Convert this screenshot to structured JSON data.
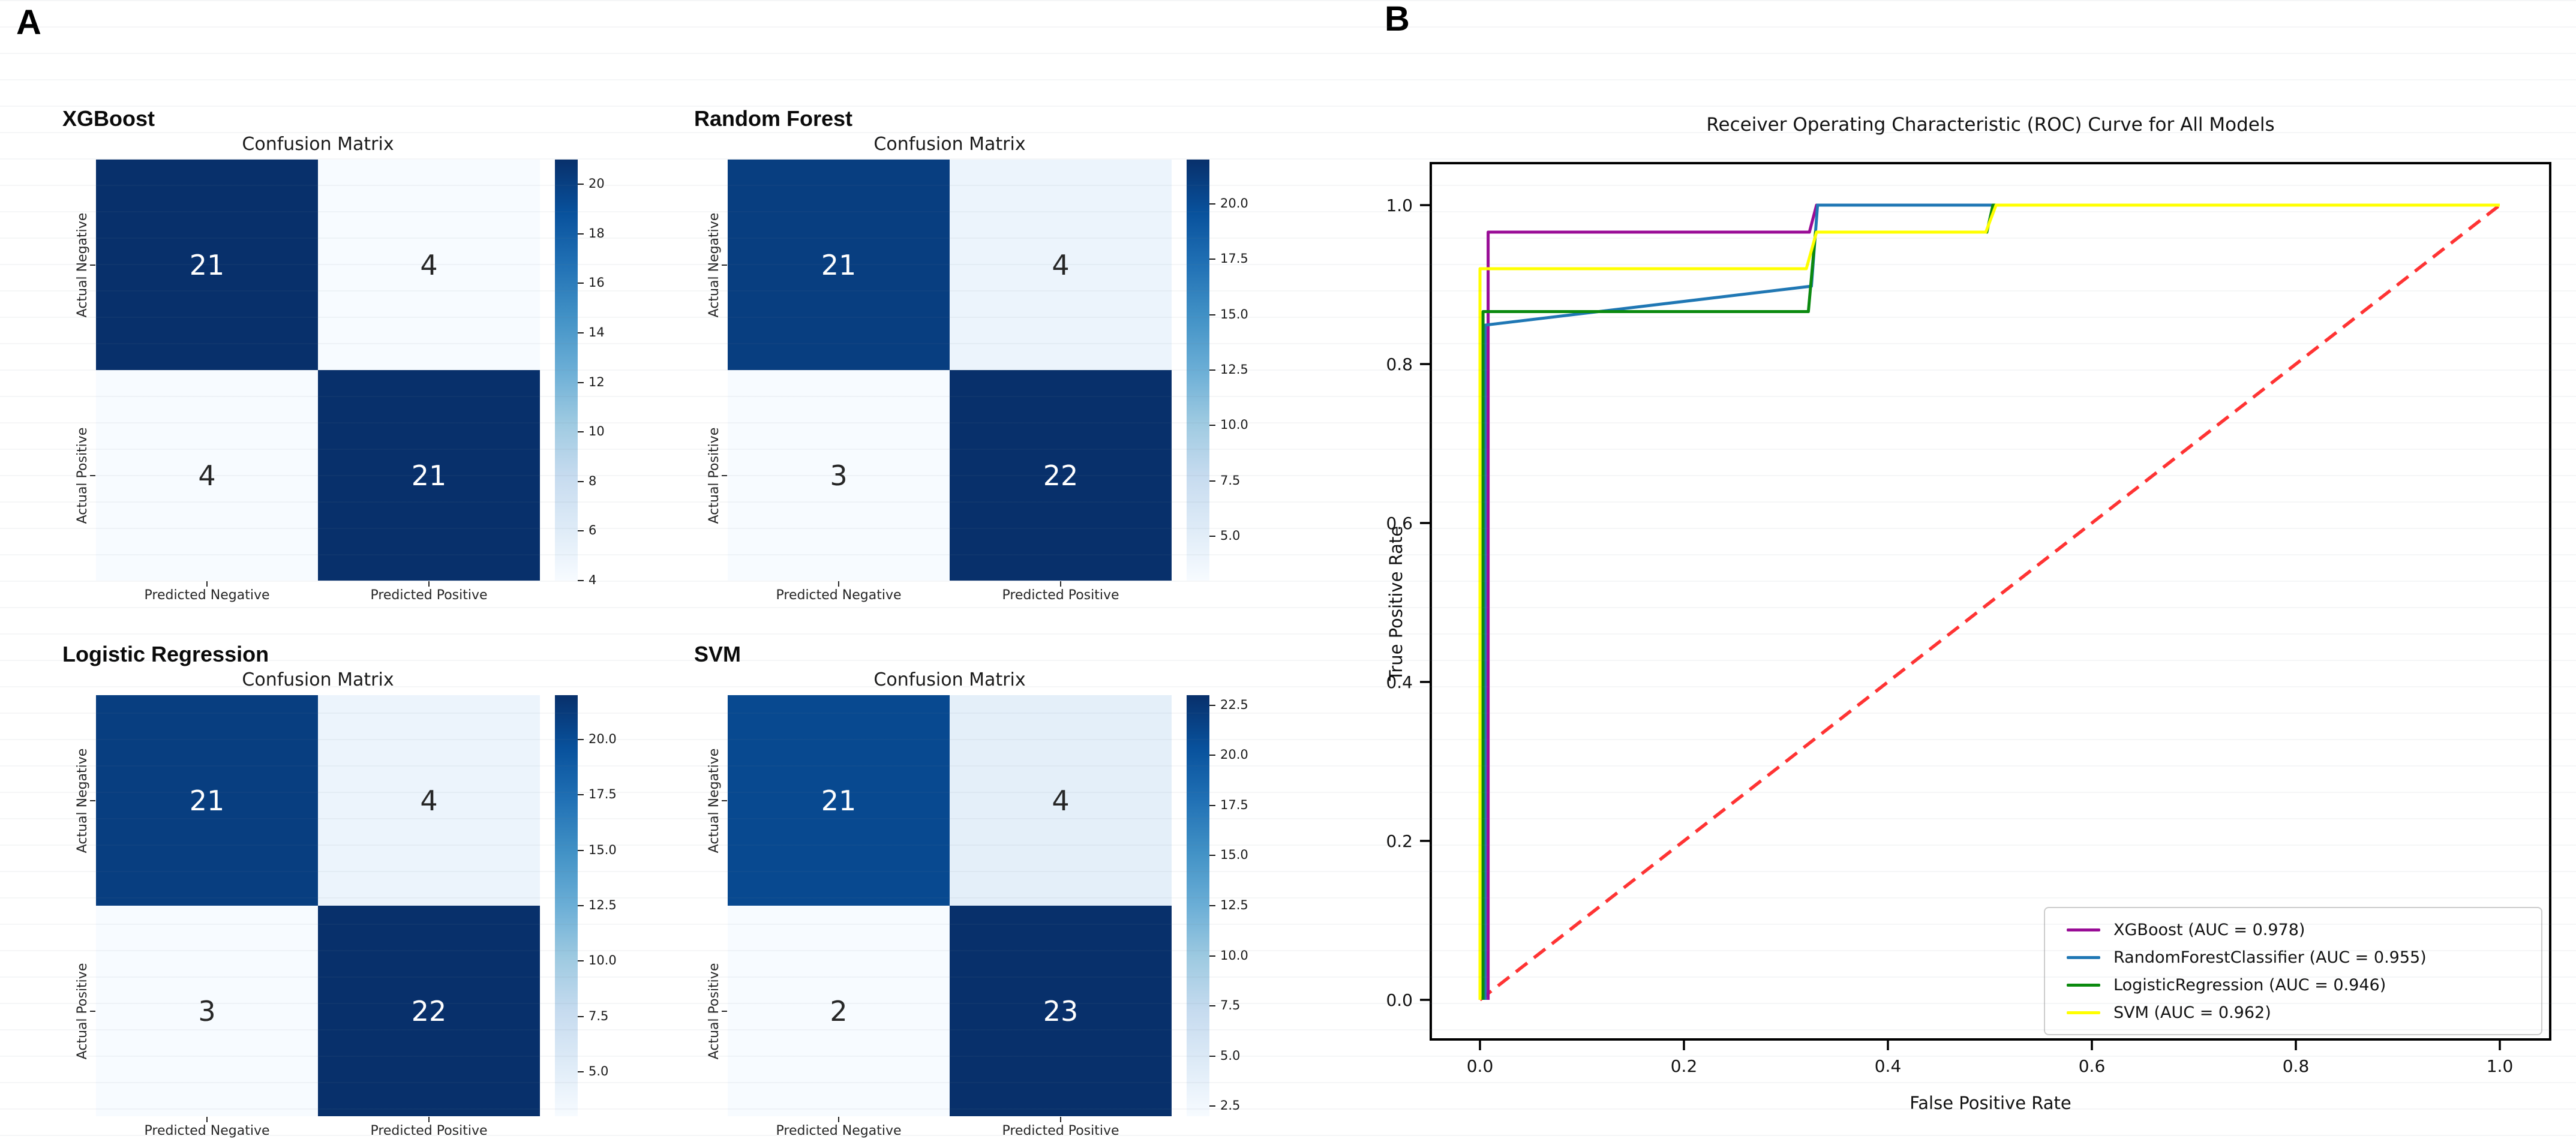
{
  "panels": {
    "a_label": "A",
    "b_label": "B"
  },
  "chart_data": [
    {
      "type": "heatmap",
      "model": "XGBoost",
      "title": "Confusion Matrix",
      "rows": [
        "Actual Negative",
        "Actual Positive"
      ],
      "cols": [
        "Predicted Negative",
        "Predicted Positive"
      ],
      "values": [
        [
          21,
          4
        ],
        [
          4,
          21
        ]
      ],
      "vmin": 4,
      "vmax": 21,
      "colormap": "Blues",
      "colorbar_ticks": [
        4,
        6,
        8,
        10,
        12,
        14,
        16,
        18,
        20
      ],
      "tick_decimals": 0
    },
    {
      "type": "heatmap",
      "model": "Random Forest",
      "title": "Confusion Matrix",
      "rows": [
        "Actual Negative",
        "Actual Positive"
      ],
      "cols": [
        "Predicted Negative",
        "Predicted Positive"
      ],
      "values": [
        [
          21,
          4
        ],
        [
          3,
          22
        ]
      ],
      "vmin": 3,
      "vmax": 22,
      "colormap": "Blues",
      "colorbar_ticks": [
        5,
        7.5,
        10,
        12.5,
        15,
        17.5,
        20
      ],
      "tick_decimals": 1
    },
    {
      "type": "heatmap",
      "model": "Logistic Regression",
      "title": "Confusion Matrix",
      "rows": [
        "Actual Negative",
        "Actual Positive"
      ],
      "cols": [
        "Predicted Negative",
        "Predicted Positive"
      ],
      "values": [
        [
          21,
          4
        ],
        [
          3,
          22
        ]
      ],
      "vmin": 3,
      "vmax": 22,
      "colormap": "Blues",
      "colorbar_ticks": [
        5,
        7.5,
        10,
        12.5,
        15,
        17.5,
        20
      ],
      "tick_decimals": 1
    },
    {
      "type": "heatmap",
      "model": "SVM",
      "title": "Confusion Matrix",
      "rows": [
        "Actual Negative",
        "Actual Positive"
      ],
      "cols": [
        "Predicted Negative",
        "Predicted Positive"
      ],
      "values": [
        [
          21,
          4
        ],
        [
          2,
          23
        ]
      ],
      "vmin": 2,
      "vmax": 23,
      "colormap": "Blues",
      "colorbar_ticks": [
        2.5,
        5,
        7.5,
        10,
        12.5,
        15,
        17.5,
        20,
        22.5
      ],
      "tick_decimals": 1
    },
    {
      "type": "line",
      "title": "Receiver Operating Characteristic (ROC) Curve for All Models",
      "xlabel": "False Positive Rate",
      "ylabel": "True Positive Rate",
      "xlim": [
        -0.05,
        1.05
      ],
      "ylim": [
        -0.05,
        1.05
      ],
      "x_ticks": [
        0.0,
        0.2,
        0.4,
        0.6,
        0.8,
        1.0
      ],
      "y_ticks": [
        0.0,
        0.2,
        0.4,
        0.6,
        0.8,
        1.0
      ],
      "grid": false,
      "legend_position": "lower right",
      "diagonal": {
        "color": "#ff2222",
        "style": "dashed",
        "points": [
          [
            0,
            0
          ],
          [
            1,
            1
          ]
        ]
      },
      "series": [
        {
          "name": "XGBoost (AUC = 0.978)",
          "auc": 0.978,
          "color": "#990c96",
          "points": [
            [
              0.008,
              0
            ],
            [
              0.008,
              0.966
            ],
            [
              0.323,
              0.966
            ],
            [
              0.33,
              1.0
            ],
            [
              1.0,
              1.0
            ]
          ]
        },
        {
          "name": "RandomForestClassifier (AUC = 0.955)",
          "auc": 0.955,
          "color": "#1f77b4",
          "points": [
            [
              0.005,
              0
            ],
            [
              0.005,
              0.849
            ],
            [
              0.325,
              0.898
            ],
            [
              0.331,
              1.0
            ],
            [
              1.0,
              1.0
            ]
          ]
        },
        {
          "name": "LogisticRegression (AUC = 0.946)",
          "auc": 0.946,
          "color": "#0b8a0f",
          "points": [
            [
              0.003,
              0
            ],
            [
              0.003,
              0.866
            ],
            [
              0.322,
              0.866
            ],
            [
              0.329,
              0.966
            ],
            [
              0.497,
              0.966
            ],
            [
              0.503,
              1.0
            ],
            [
              1.0,
              1.0
            ]
          ]
        },
        {
          "name": "SVM (AUC = 0.962)",
          "auc": 0.962,
          "color": "#ffff00",
          "points": [
            [
              0.0,
              0
            ],
            [
              0.0,
              0.92
            ],
            [
              0.32,
              0.92
            ],
            [
              0.33,
              0.966
            ],
            [
              0.496,
              0.966
            ],
            [
              0.506,
              1.0
            ],
            [
              1.0,
              1.0
            ]
          ]
        }
      ]
    }
  ]
}
